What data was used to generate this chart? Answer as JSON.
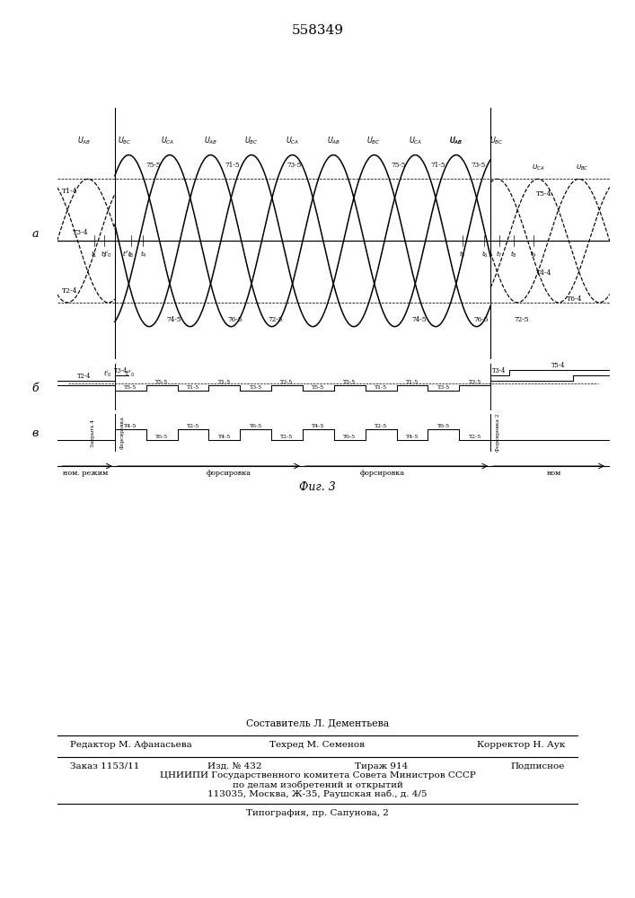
{
  "bg_color": "#ffffff",
  "header_text": "558349",
  "sestavitel": "Составитель Л. Дементьева",
  "redaktor": "Редактор М. Афанасьева",
  "tehred": "Техред М. Семенов",
  "korrektor": "Корректор Н. Аук",
  "zakaz": "Заказ 1153/11",
  "izd": "Изд. № 432",
  "tirazh": "Тираж 914",
  "podpisnoe": "Подписное",
  "tsniip": "ЦНИИПИ Государственного комитета Совета Министров СССР",
  "po_delam": "по делам изобретений и открытий",
  "adres": "113035, Москва, Ж-35, Раушская наб., д. 4/5",
  "tipografia": "Типография, пр. Сапунова, 2",
  "fig_label": "Фиг. 3",
  "nom_rezhim": "ном. режим",
  "forsirovka": "форсировка",
  "nom": "ном",
  "label_a": "a",
  "label_b": "б",
  "label_v": "в",
  "zapryit4": "Запрыть 4",
  "forsirovka_rot": "Форсировка",
  "forsirovka2_rot": "Форсировка 2"
}
